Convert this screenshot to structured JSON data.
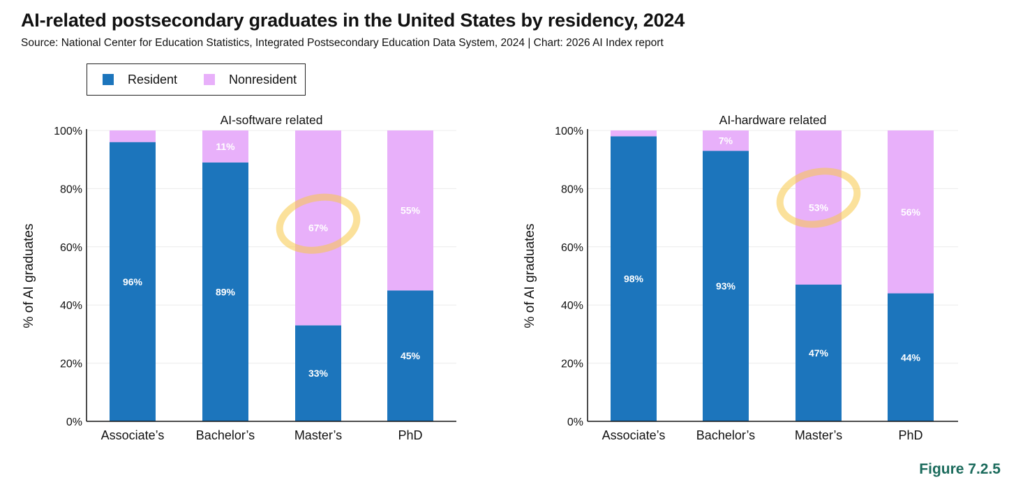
{
  "title": "AI-related postsecondary graduates in the United States by residency, 2024",
  "subtitle": "Source: National Center for Education Statistics, Integrated Postsecondary Education Data System, 2024 | Chart: 2026 AI Index report",
  "figure_label": "Figure 7.2.5",
  "legend": [
    {
      "label": "Resident",
      "color": "#1c75bc"
    },
    {
      "label": "Nonresident",
      "color": "#e8b0fa"
    }
  ],
  "chart_data": [
    {
      "type": "bar",
      "stacked": true,
      "title": "AI-software related",
      "xlabel": "",
      "ylabel": "% of AI graduates",
      "ylim": [
        0,
        100
      ],
      "yticks": [
        "0%",
        "20%",
        "40%",
        "60%",
        "80%",
        "100%"
      ],
      "categories": [
        "Associate’s",
        "Bachelor’s",
        "Master’s",
        "PhD"
      ],
      "series": [
        {
          "name": "Resident",
          "values": [
            96,
            89,
            33,
            45
          ],
          "labels": [
            "96%",
            "89%",
            "33%",
            "45%"
          ]
        },
        {
          "name": "Nonresident",
          "values": [
            4,
            11,
            67,
            55
          ],
          "labels": [
            "",
            "11%",
            "67%",
            "55%"
          ]
        }
      ],
      "highlight": {
        "series": "Nonresident",
        "category": "Master’s"
      }
    },
    {
      "type": "bar",
      "stacked": true,
      "title": "AI-hardware related",
      "xlabel": "",
      "ylabel": "% of AI graduates",
      "ylim": [
        0,
        100
      ],
      "yticks": [
        "0%",
        "20%",
        "40%",
        "60%",
        "80%",
        "100%"
      ],
      "categories": [
        "Associate’s",
        "Bachelor’s",
        "Master’s",
        "PhD"
      ],
      "series": [
        {
          "name": "Resident",
          "values": [
            98,
            93,
            47,
            44
          ],
          "labels": [
            "98%",
            "93%",
            "47%",
            "44%"
          ]
        },
        {
          "name": "Nonresident",
          "values": [
            2,
            7,
            53,
            56
          ],
          "labels": [
            "",
            "7%",
            "53%",
            "56%"
          ]
        }
      ],
      "highlight": {
        "series": "Nonresident",
        "category": "Master’s"
      }
    }
  ]
}
